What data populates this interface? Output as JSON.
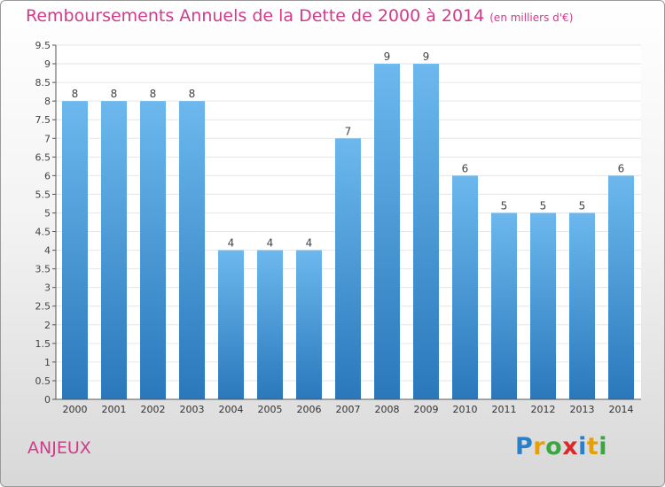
{
  "title": "Remboursements Annuels de la Dette de 2000 à 2014",
  "unit": "(en milliers d'€)",
  "city": "ANJEUX",
  "logo": {
    "text": "Proxiti",
    "letters": [
      "P",
      "r",
      "o",
      "x",
      "i",
      "t",
      "i"
    ],
    "colors": [
      "#2a7fc8",
      "#e8a000",
      "#3aa640",
      "#d92a2a",
      "#2a7fc8",
      "#e8a000",
      "#3aa640"
    ]
  },
  "colors": {
    "bar_top": "#6cb8ee",
    "bar_bottom": "#2a78bb",
    "accent": "#d23a8a"
  },
  "chart_data": {
    "type": "bar",
    "categories": [
      "2000",
      "2001",
      "2002",
      "2003",
      "2004",
      "2005",
      "2006",
      "2007",
      "2008",
      "2009",
      "2010",
      "2011",
      "2012",
      "2013",
      "2014"
    ],
    "values": [
      8,
      8,
      8,
      8,
      4,
      4,
      4,
      7,
      9,
      9,
      6,
      5,
      5,
      5,
      6
    ],
    "data_labels": [
      "8",
      "8",
      "8",
      "8",
      "4",
      "4",
      "4",
      "7",
      "9",
      "9",
      "6",
      "5",
      "5",
      "5",
      "6"
    ],
    "yticks": [
      0,
      0.5,
      1,
      1.5,
      2,
      2.5,
      3,
      3.5,
      4,
      4.5,
      5,
      5.5,
      6,
      6.5,
      7,
      7.5,
      8,
      8.5,
      9,
      9.5
    ],
    "ytick_labels": [
      "0",
      "0.5",
      "1",
      "1.5",
      "2",
      "2.5",
      "3",
      "3.5",
      "4",
      "4.5",
      "5",
      "5.5",
      "6",
      "6.5",
      "7",
      "7.5",
      "8",
      "8.5",
      "9",
      "9.5"
    ],
    "ylim": [
      0,
      9.5
    ],
    "grid": true,
    "legend": "none"
  }
}
